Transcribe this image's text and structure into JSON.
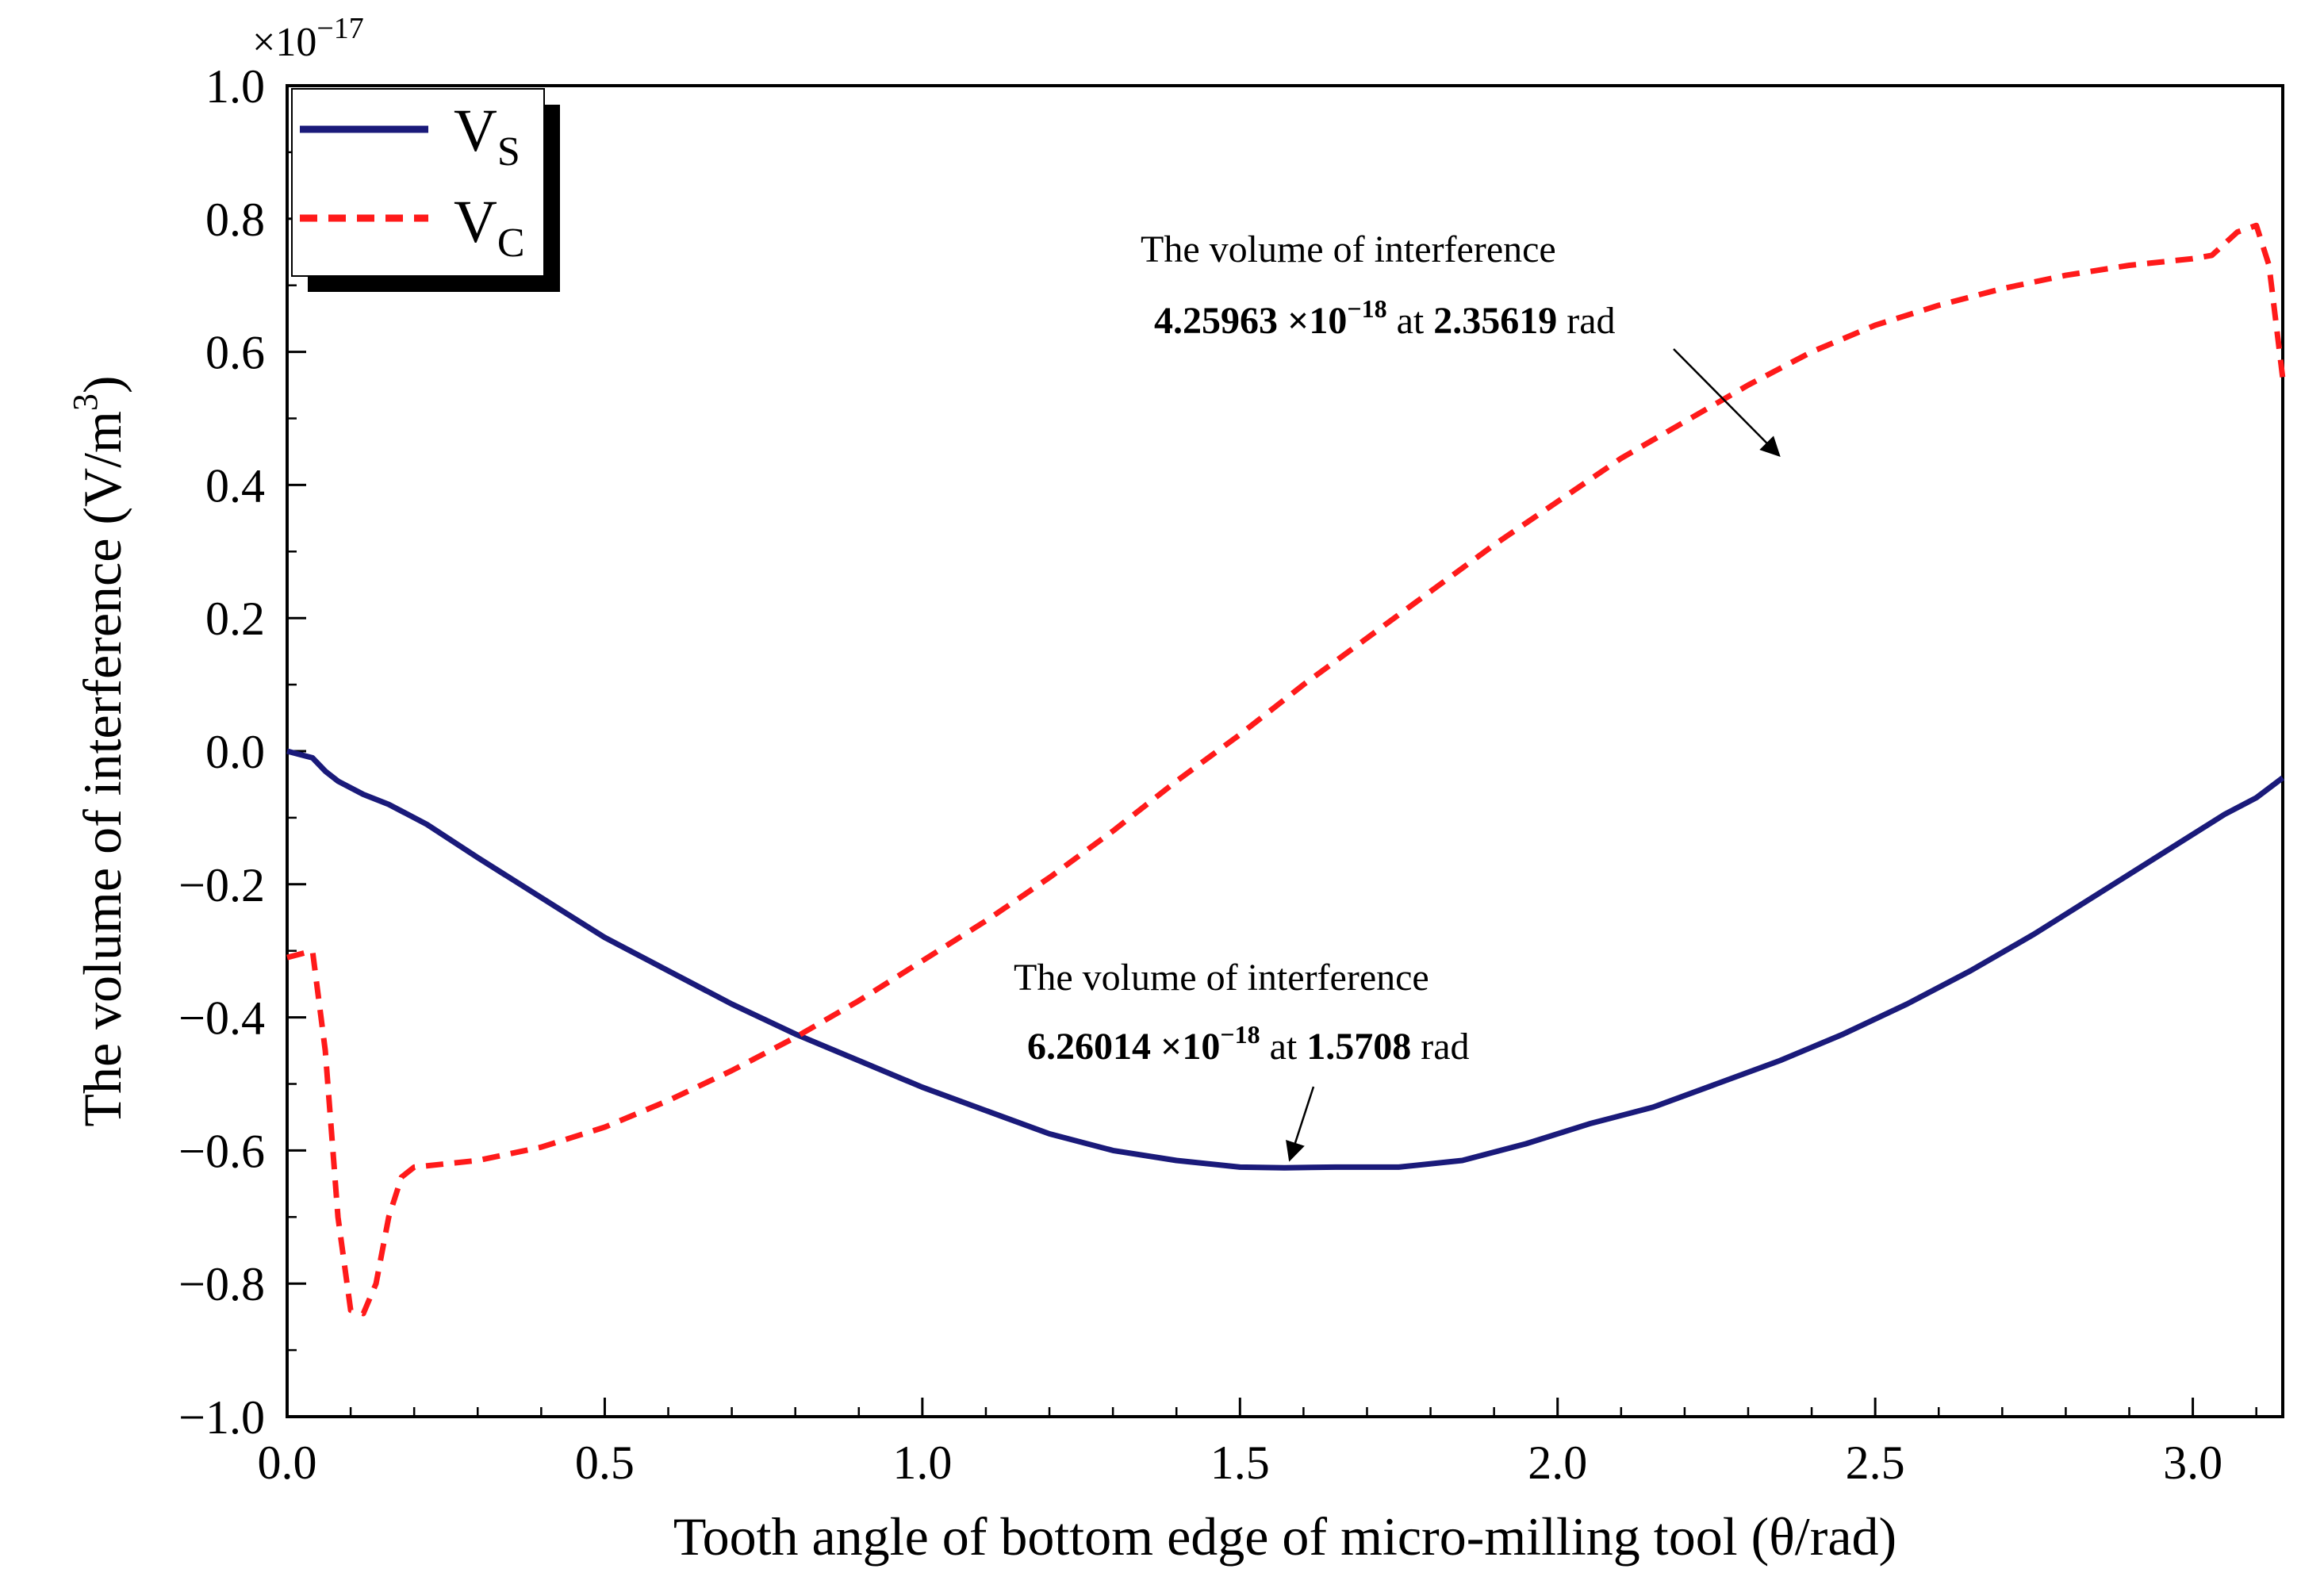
{
  "chart_data": {
    "type": "line",
    "title": "",
    "xlabel": "Tooth angle of bottom edge of micro-milling tool  (θ/rad)",
    "ylabel": "The volume of interference (V/m³)",
    "ylabel_main": "The volume of interference (V/m",
    "ylabel_sup": "3",
    "ylabel_end": ")",
    "xlim": [
      0,
      3.14159
    ],
    "ylim": [
      -1.0,
      1.0
    ],
    "y_multiplier": "×10",
    "y_multiplier_exp": "−17",
    "xticks": [
      "0.0",
      "0.5",
      "1.0",
      "1.5",
      "2.0",
      "2.5",
      "3.0"
    ],
    "yticks": [
      "−1.0",
      "−0.8",
      "−0.6",
      "−0.4",
      "−0.2",
      "0.0",
      "0.2",
      "0.4",
      "0.6",
      "0.8",
      "1.0"
    ],
    "legend_position": "top-left",
    "series": [
      {
        "name": "VS",
        "legend_main": "V",
        "legend_sub": "S",
        "color": "#1a1a7a",
        "style": "solid",
        "x": [
          0,
          0.04,
          0.06,
          0.08,
          0.12,
          0.16,
          0.22,
          0.3,
          0.4,
          0.5,
          0.6,
          0.7,
          0.8,
          0.9,
          1.0,
          1.1,
          1.2,
          1.3,
          1.4,
          1.5,
          1.57,
          1.65,
          1.75,
          1.85,
          1.95,
          2.05,
          2.15,
          2.25,
          2.35,
          2.45,
          2.55,
          2.65,
          2.75,
          2.85,
          2.95,
          3.05,
          3.1,
          3.14159
        ],
        "y": [
          0.0,
          -0.01,
          -0.03,
          -0.045,
          -0.065,
          -0.08,
          -0.11,
          -0.16,
          -0.22,
          -0.28,
          -0.33,
          -0.38,
          -0.425,
          -0.465,
          -0.505,
          -0.54,
          -0.575,
          -0.6,
          -0.615,
          -0.625,
          -0.626,
          -0.625,
          -0.625,
          -0.615,
          -0.59,
          -0.56,
          -0.535,
          -0.5,
          -0.465,
          -0.425,
          -0.38,
          -0.33,
          -0.275,
          -0.215,
          -0.155,
          -0.095,
          -0.07,
          -0.04
        ]
      },
      {
        "name": "VC",
        "legend_main": "V",
        "legend_sub": "C",
        "color": "#ff1a1a",
        "style": "dashed",
        "x": [
          0,
          0.04,
          0.06,
          0.08,
          0.1,
          0.12,
          0.14,
          0.16,
          0.18,
          0.2,
          0.25,
          0.3,
          0.4,
          0.5,
          0.6,
          0.7,
          0.8,
          0.9,
          1.0,
          1.1,
          1.2,
          1.3,
          1.4,
          1.5,
          1.6,
          1.7,
          1.8,
          1.9,
          2.0,
          2.1,
          2.2,
          2.3,
          2.4,
          2.5,
          2.6,
          2.7,
          2.8,
          2.9,
          3.0,
          3.03,
          3.07,
          3.1,
          3.12,
          3.14159
        ],
        "y": [
          -0.31,
          -0.3,
          -0.45,
          -0.7,
          -0.84,
          -0.845,
          -0.8,
          -0.7,
          -0.64,
          -0.625,
          -0.62,
          -0.615,
          -0.595,
          -0.565,
          -0.525,
          -0.48,
          -0.43,
          -0.375,
          -0.315,
          -0.255,
          -0.19,
          -0.12,
          -0.045,
          0.025,
          0.1,
          0.17,
          0.24,
          0.31,
          0.375,
          0.44,
          0.495,
          0.55,
          0.6,
          0.64,
          0.67,
          0.695,
          0.715,
          0.73,
          0.74,
          0.745,
          0.78,
          0.79,
          0.73,
          0.56
        ]
      }
    ],
    "annotations": [
      {
        "line1": "The volume of interference",
        "value_mantissa": "4.25963 ×10",
        "value_exp": "−18",
        "at_text": " at ",
        "angle": "2.35619",
        "unit": " rad",
        "target_x": 2.35619,
        "target_y": 0.43
      },
      {
        "line1": "The volume of interference",
        "value_mantissa": "6.26014 ×10",
        "value_exp": "−18",
        "at_text": " at ",
        "angle": "1.5708",
        "unit": " rad",
        "target_x": 1.5708,
        "target_y": -0.626
      }
    ]
  }
}
